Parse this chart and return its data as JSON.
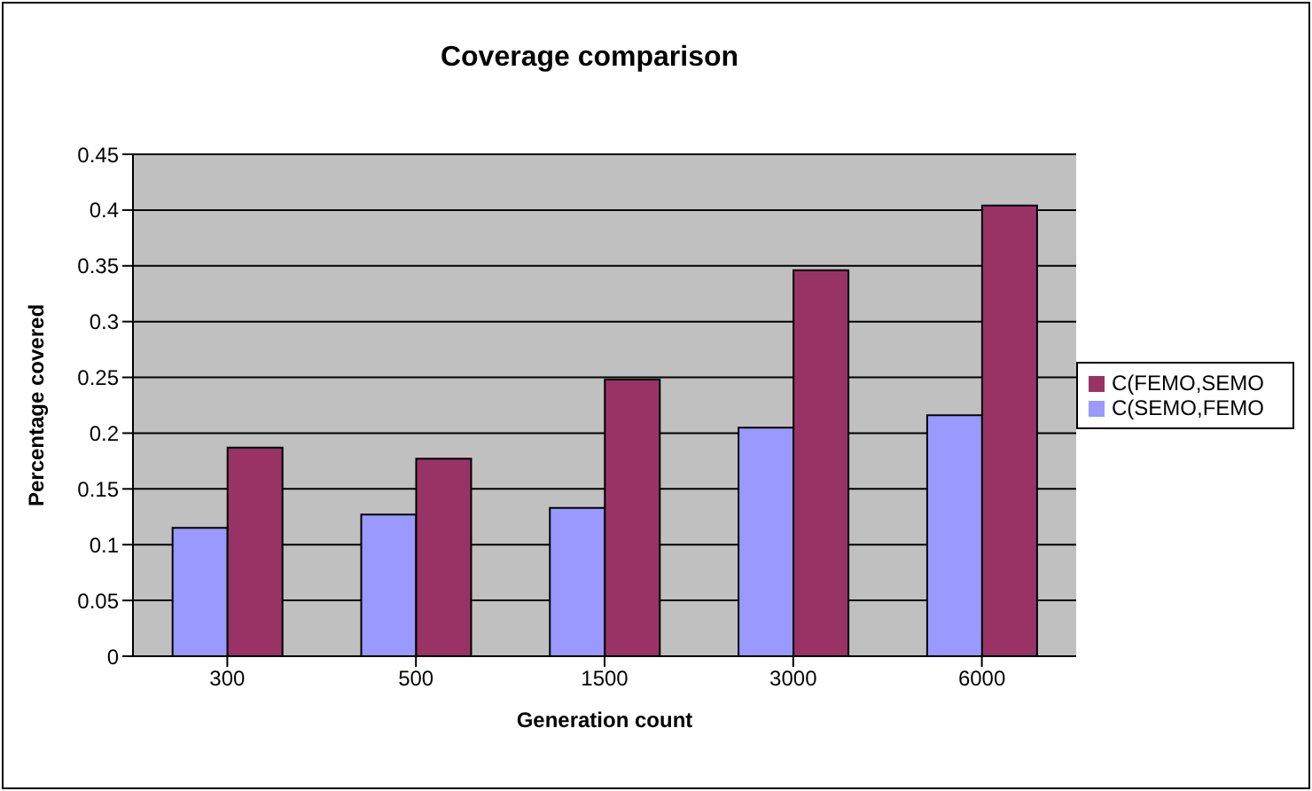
{
  "chart_data": {
    "type": "bar",
    "title": "Coverage comparison",
    "xlabel": "Generation count",
    "ylabel": "Percentage covered",
    "categories": [
      "300",
      "500",
      "1500",
      "3000",
      "6000"
    ],
    "series": [
      {
        "name": "C(SEMO,FEMO",
        "color": "#9999ff",
        "values": [
          0.115,
          0.127,
          0.133,
          0.205,
          0.216
        ]
      },
      {
        "name": "C(FEMO,SEMO",
        "color": "#993366",
        "values": [
          0.187,
          0.177,
          0.248,
          0.346,
          0.404
        ]
      }
    ],
    "ylim": [
      0,
      0.45
    ],
    "yticks": [
      0,
      0.05,
      0.1,
      0.15,
      0.2,
      0.25,
      0.3,
      0.35,
      0.4,
      0.45
    ],
    "grid": "y",
    "legend": "right"
  }
}
